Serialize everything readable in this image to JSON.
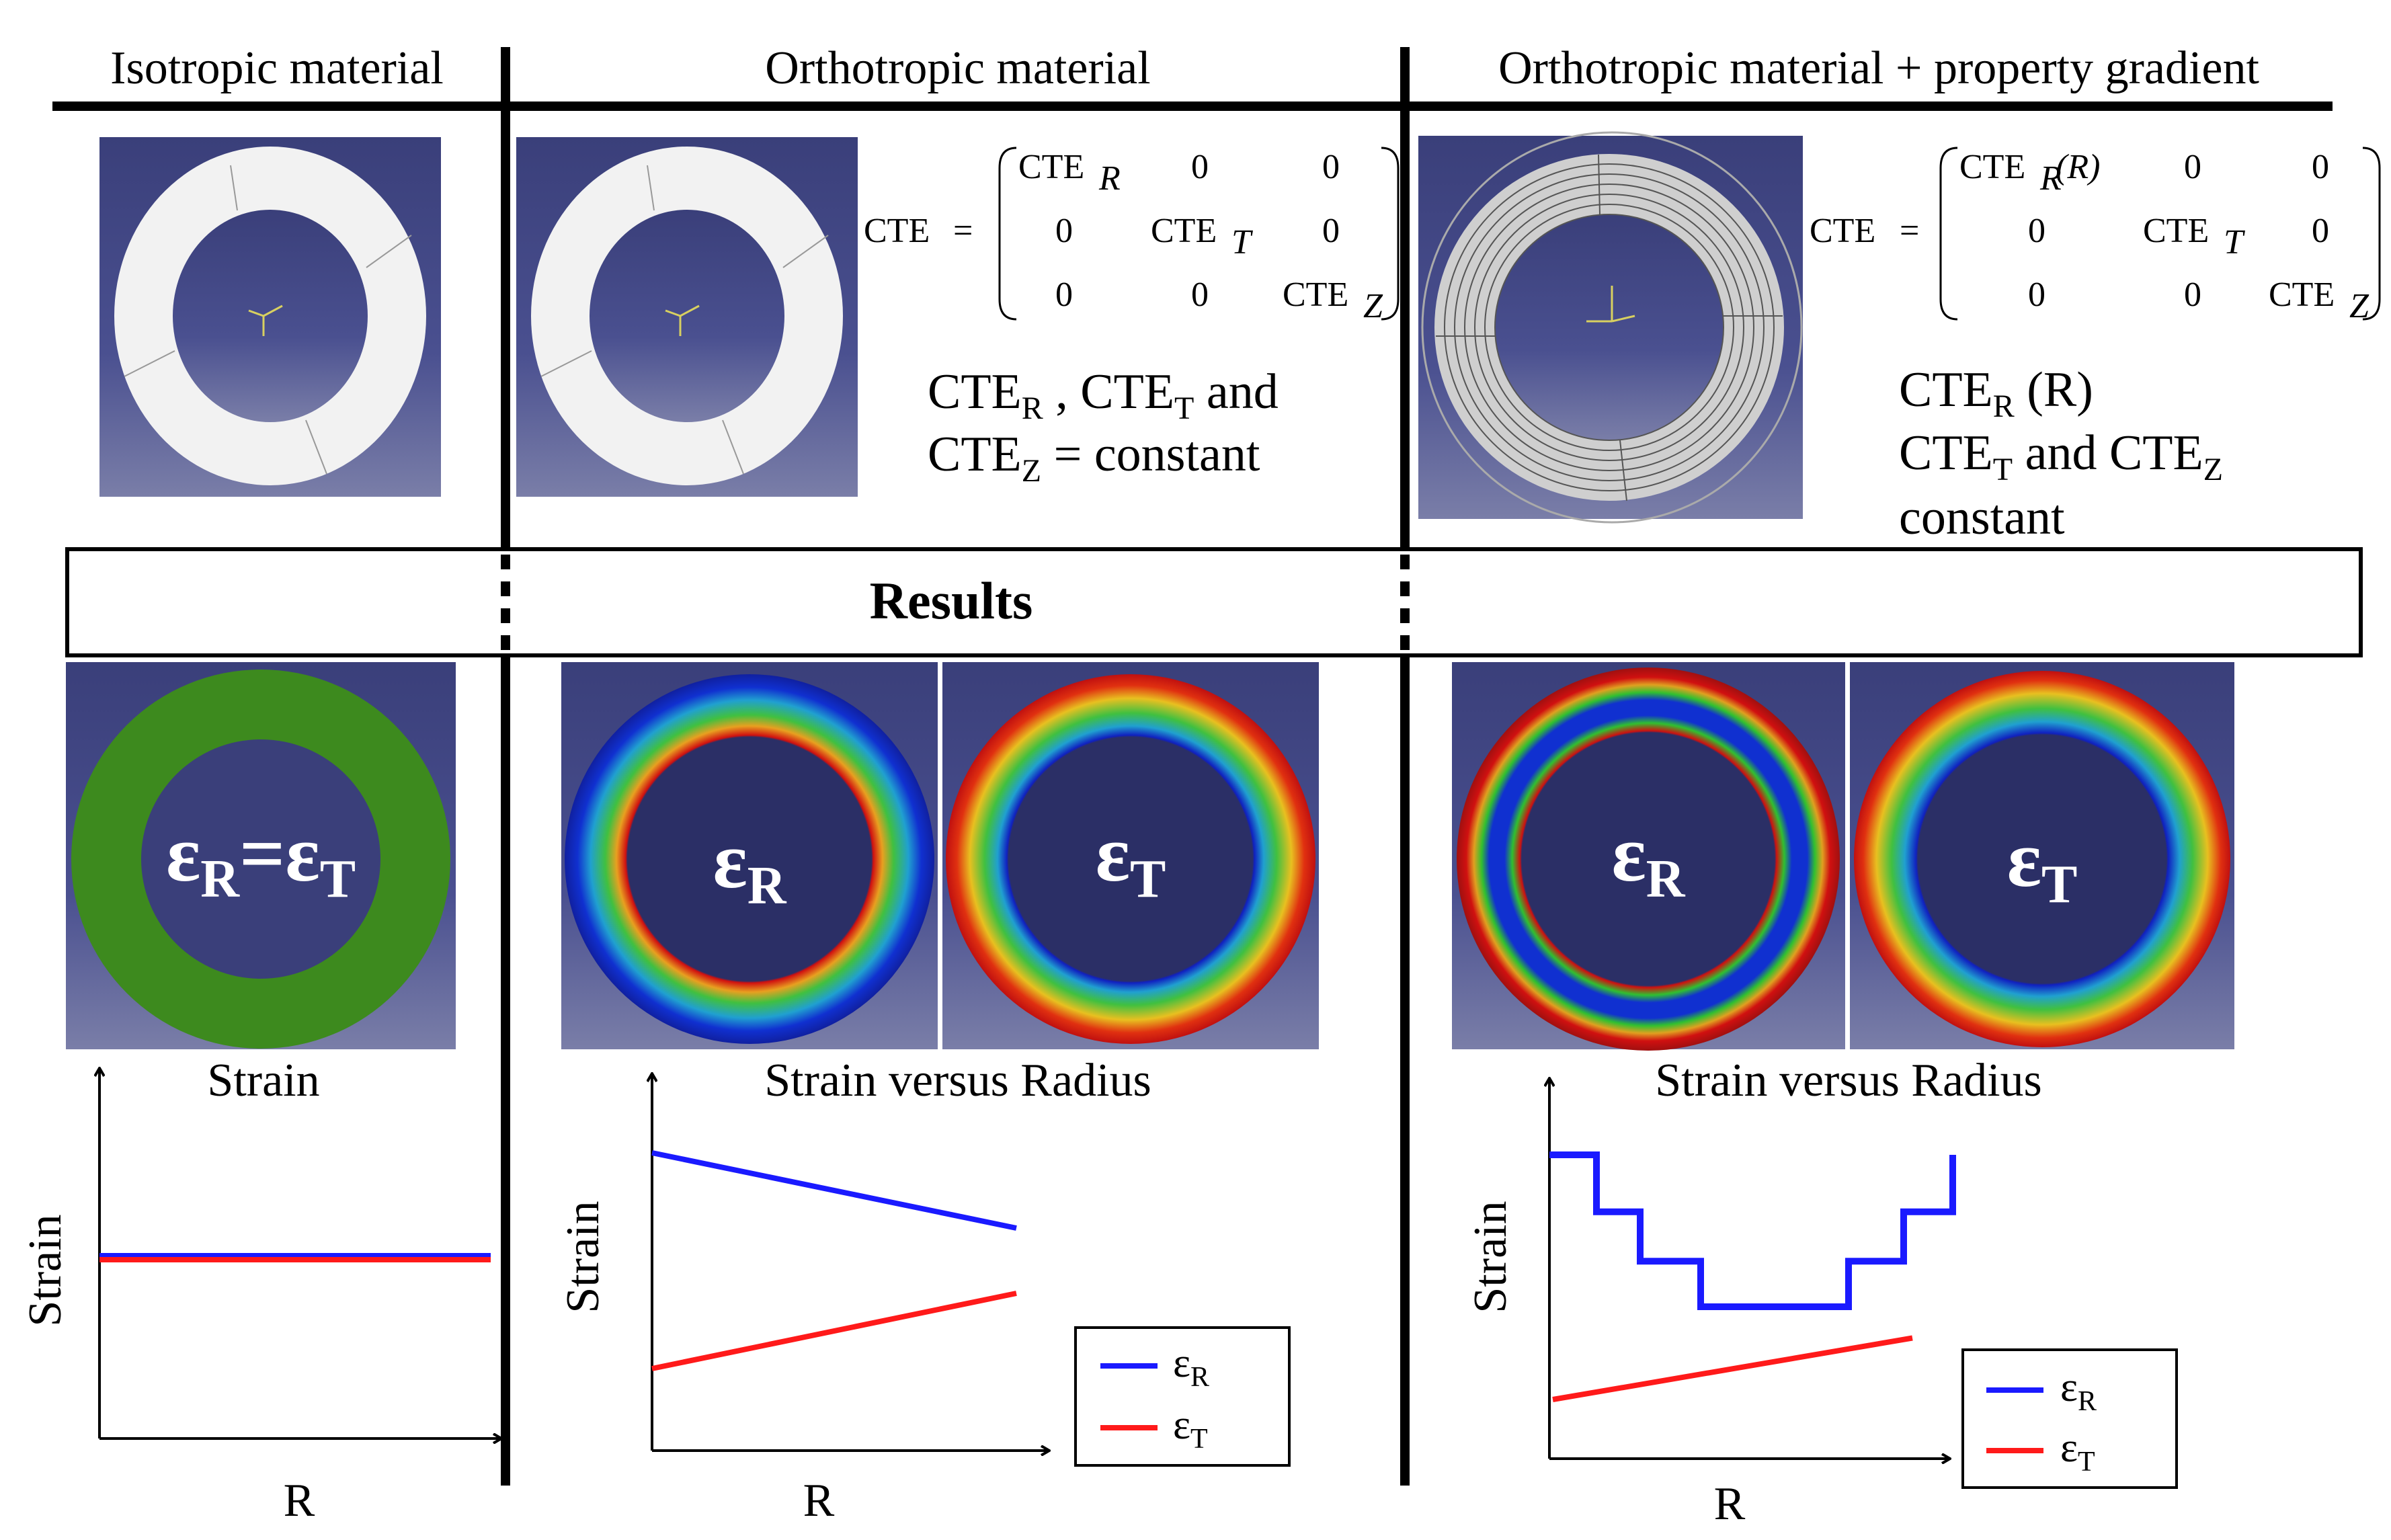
{
  "headers": [
    "Isotropic material",
    "Orthotropic material",
    "Orthotropic material + property gradient"
  ],
  "cte_matrix_ortho": {
    "lhs": "CTE",
    "eq": "=",
    "rows": [
      [
        "CTE",
        "0",
        "0"
      ],
      [
        "0",
        "CTE",
        "0"
      ],
      [
        "0",
        "0",
        "CTE"
      ]
    ],
    "subscripts": [
      "R",
      "T",
      "Z"
    ]
  },
  "cte_matrix_gradient": {
    "lhs": "CTE",
    "eq": "=",
    "rows": [
      [
        "CTE",
        "0",
        "0"
      ],
      [
        "0",
        "CTE",
        "0"
      ],
      [
        "0",
        "0",
        "CTE"
      ]
    ],
    "subscripts": [
      "R",
      "T",
      "Z"
    ],
    "r_suffix": "(R)"
  },
  "ortho_note": {
    "line1_a": "CTE",
    "line1_a_sub": "R",
    "line1_b": " , CTE",
    "line1_b_sub": "T",
    "line1_c": "  and",
    "line2_a": "CTE",
    "line2_a_sub": "Z",
    "line2_b": "  = constant"
  },
  "gradient_note": {
    "line1_a": "CTE",
    "line1_a_sub": "R",
    "line1_b": " (R)",
    "line2_a": "CTE",
    "line2_a_sub": "T",
    "line2_b": " and CTE",
    "line2_b_sub": "Z",
    "line3": "constant"
  },
  "results_label": "Results",
  "strain_maps": {
    "iso": {
      "a": "ε",
      "a_sub": "R",
      "eq": "=",
      "b": "ε",
      "b_sub": "T"
    },
    "er": {
      "sym": "ε",
      "sub": "R"
    },
    "et": {
      "sym": "ε",
      "sub": "T"
    }
  },
  "plot_titles": [
    "Strain",
    "Strain versus Radius",
    "Strain versus Radius"
  ],
  "axis_labels": {
    "x": "R",
    "y": "Strain"
  },
  "legend": [
    {
      "sym": "ε",
      "sub": "R",
      "color": "#1a1aff"
    },
    {
      "sym": "ε",
      "sub": "T",
      "color": "#ff1a1a"
    }
  ],
  "colors": {
    "background_panel": "#2e3466",
    "ring_white": "#f2f2f2",
    "ring_green": "#3d8a1e",
    "eps_R": "#1a1aff",
    "eps_T": "#ff1a1a"
  },
  "chart_data": [
    {
      "type": "line",
      "title": "Strain",
      "xlabel": "R",
      "ylabel": "Strain",
      "series": [
        {
          "name": "εR",
          "values": [
            0.5,
            0.5
          ]
        },
        {
          "name": "εT",
          "values": [
            0.5,
            0.5
          ]
        }
      ]
    },
    {
      "type": "line",
      "title": "Strain versus Radius",
      "xlabel": "R",
      "ylabel": "Strain",
      "series": [
        {
          "name": "εR",
          "values": [
            0.8,
            0.6
          ]
        },
        {
          "name": "εT",
          "values": [
            0.2,
            0.4
          ]
        }
      ]
    },
    {
      "type": "line",
      "title": "Strain versus Radius",
      "xlabel": "R",
      "ylabel": "Strain",
      "series": [
        {
          "name": "εR",
          "values": [
            0.8,
            0.65,
            0.52,
            0.4,
            0.4,
            0.52,
            0.65,
            0.8
          ]
        },
        {
          "name": "εT",
          "values": [
            0.2,
            0.3
          ]
        }
      ]
    }
  ]
}
